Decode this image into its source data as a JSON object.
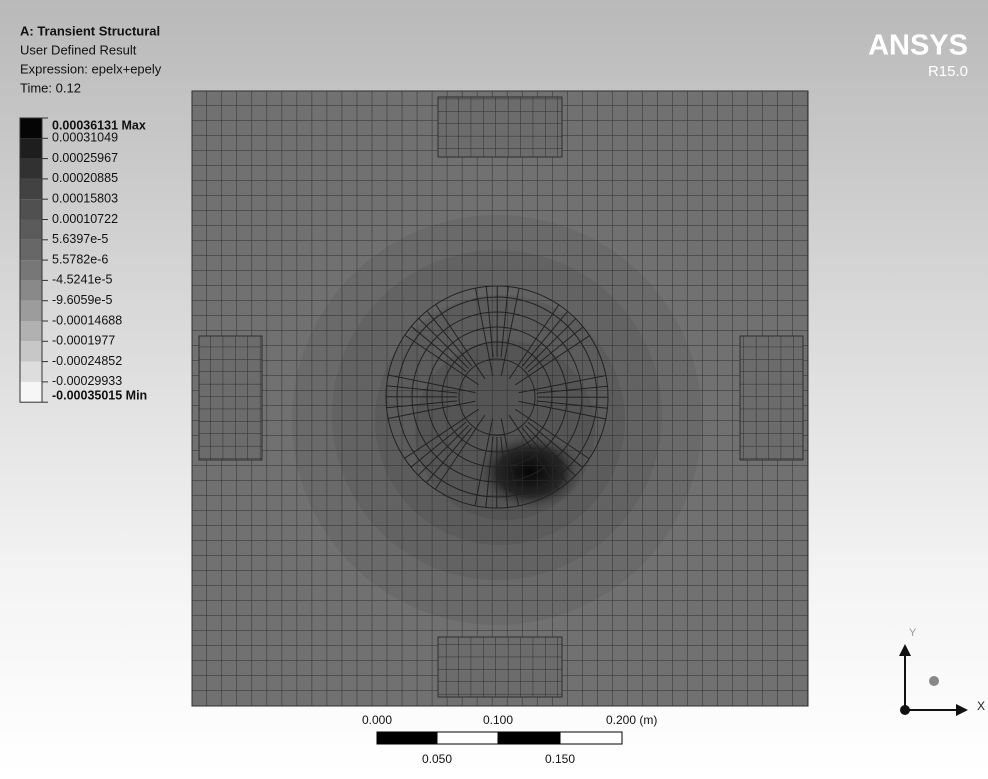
{
  "header": {
    "title": "A: Transient Structural",
    "lines": [
      "User Defined Result",
      "Expression: epelx+epely",
      "Time: 0.12"
    ]
  },
  "logo": {
    "name": "ANSYS",
    "version": "R15.0"
  },
  "legend": {
    "entries": [
      "0.00036131 Max",
      "0.00031049",
      "0.00025967",
      "0.00020885",
      "0.00015803",
      "0.00010722",
      "5.6397e-5",
      "5.5782e-6",
      "-4.5241e-5",
      "-9.6059e-5",
      "-0.00014688",
      "-0.0001977",
      "-0.00024852",
      "-0.00029933",
      "-0.00035015 Min"
    ],
    "colors": [
      "#050505",
      "#1e1e1e",
      "#313131",
      "#424242",
      "#505050",
      "#5b5b5b",
      "#676767",
      "#777777",
      "#898989",
      "#9c9c9c",
      "#b1b1b1",
      "#c7c7c7",
      "#dddddd",
      "#f6f6f6"
    ]
  },
  "scale_bar": {
    "top_labels": [
      "0.000",
      "0.100",
      "0.200 (m)"
    ],
    "bottom_labels": [
      "0.050",
      "0.150"
    ]
  },
  "triad": {
    "y_label": "Y",
    "x_label": "X"
  }
}
